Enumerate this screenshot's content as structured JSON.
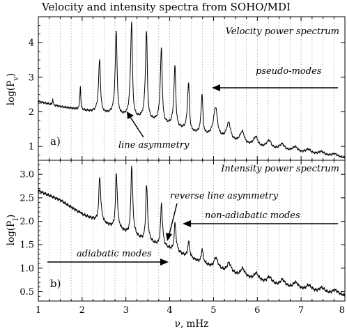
{
  "chart_data": [
    {
      "type": "line",
      "title": "Velocity and intensity spectra from SOHO/MDI",
      "panel_label": "a)",
      "inset_title": "Velocity power spectrum",
      "xlabel": "",
      "ylabel": "log(P",
      "ylabel_sub": "v",
      "ylabel_close": ")",
      "xlim": [
        1,
        8
      ],
      "ylim": [
        0.6,
        4.75
      ],
      "grid": "vertical dotted lines every 0.25 mHz",
      "yticks": [
        "1",
        "2",
        "3",
        "4"
      ],
      "baseline": {
        "x": [
          1.0,
          1.5,
          1.75,
          2.0,
          2.2,
          2.5,
          2.75,
          3.0,
          3.25,
          3.5,
          3.75,
          4.0,
          4.25,
          4.5,
          4.75,
          5.0,
          5.5,
          6.0,
          6.5,
          7.0,
          7.5,
          8.0
        ],
        "y": [
          2.3,
          2.15,
          2.1,
          2.05,
          2.0,
          1.95,
          1.9,
          1.85,
          1.8,
          1.75,
          1.7,
          1.6,
          1.5,
          1.4,
          1.3,
          1.25,
          1.1,
          0.95,
          0.88,
          0.8,
          0.73,
          0.67
        ]
      },
      "peaks": {
        "x": [
          1.33,
          1.96,
          2.4,
          2.78,
          3.13,
          3.47,
          3.81,
          4.12,
          4.43,
          4.74,
          5.05,
          5.35,
          5.66,
          5.97,
          6.27,
          6.57,
          6.87,
          7.17,
          7.47,
          7.77
        ],
        "y": [
          2.4,
          2.75,
          3.5,
          4.3,
          4.55,
          4.3,
          3.8,
          3.3,
          2.8,
          2.45,
          2.1,
          1.65,
          1.4,
          1.25,
          1.15,
          1.05,
          0.97,
          0.9,
          0.84,
          0.78
        ]
      },
      "annotations": [
        {
          "text": "pseudo-modes",
          "arrow_tip": [
            4.7,
            2.95
          ]
        },
        {
          "text": "line asymmetry",
          "arrow_tip": [
            3.0,
            1.95
          ]
        }
      ]
    },
    {
      "type": "line",
      "panel_label": "b)",
      "inset_title": "Intensity power spectrum",
      "xlabel": "ν, mHz",
      "ylabel": "log(P",
      "ylabel_sub": "I",
      "ylabel_close": ")",
      "xlim": [
        1,
        8
      ],
      "ylim": [
        0.3,
        3.3
      ],
      "grid": "vertical dotted lines every 0.25 mHz",
      "yticks": [
        "0.5",
        "1.0",
        "1.5",
        "2.0",
        "2.5",
        "3.0"
      ],
      "xticks": [
        "1",
        "2",
        "3",
        "4",
        "5",
        "6",
        "7",
        "8"
      ],
      "baseline": {
        "x": [
          1.0,
          1.5,
          1.75,
          2.0,
          2.25,
          2.5,
          2.75,
          3.0,
          3.25,
          3.5,
          3.75,
          4.0,
          4.25,
          4.5,
          4.75,
          5.0,
          5.5,
          6.0,
          6.5,
          7.0,
          7.5,
          8.0
        ],
        "y": [
          2.65,
          2.45,
          2.3,
          2.15,
          2.05,
          1.95,
          1.85,
          1.75,
          1.65,
          1.55,
          1.48,
          1.4,
          1.3,
          1.2,
          1.1,
          1.0,
          0.85,
          0.72,
          0.6,
          0.52,
          0.45,
          0.4
        ]
      },
      "peaks": {
        "x": [
          1.96,
          2.4,
          2.78,
          3.13,
          3.47,
          3.81,
          4.12,
          4.43,
          4.74,
          5.05,
          5.35,
          5.66,
          5.97,
          6.27,
          6.57,
          6.87,
          7.17,
          7.47,
          7.77
        ],
        "y": [
          2.2,
          2.95,
          3.0,
          3.15,
          2.75,
          2.35,
          1.95,
          1.55,
          1.4,
          1.22,
          1.1,
          0.98,
          0.88,
          0.8,
          0.74,
          0.68,
          0.62,
          0.57,
          0.52
        ]
      },
      "annotations": [
        {
          "text": "reverse line asymmetry",
          "arrow_tip": [
            3.92,
            1.55
          ]
        },
        {
          "text": "non-adiabatic modes",
          "arrow_tip": [
            4.08,
            1.75
          ]
        },
        {
          "text": "adiabatic modes",
          "arrow_tip": [
            3.95,
            1.15
          ]
        }
      ]
    }
  ]
}
